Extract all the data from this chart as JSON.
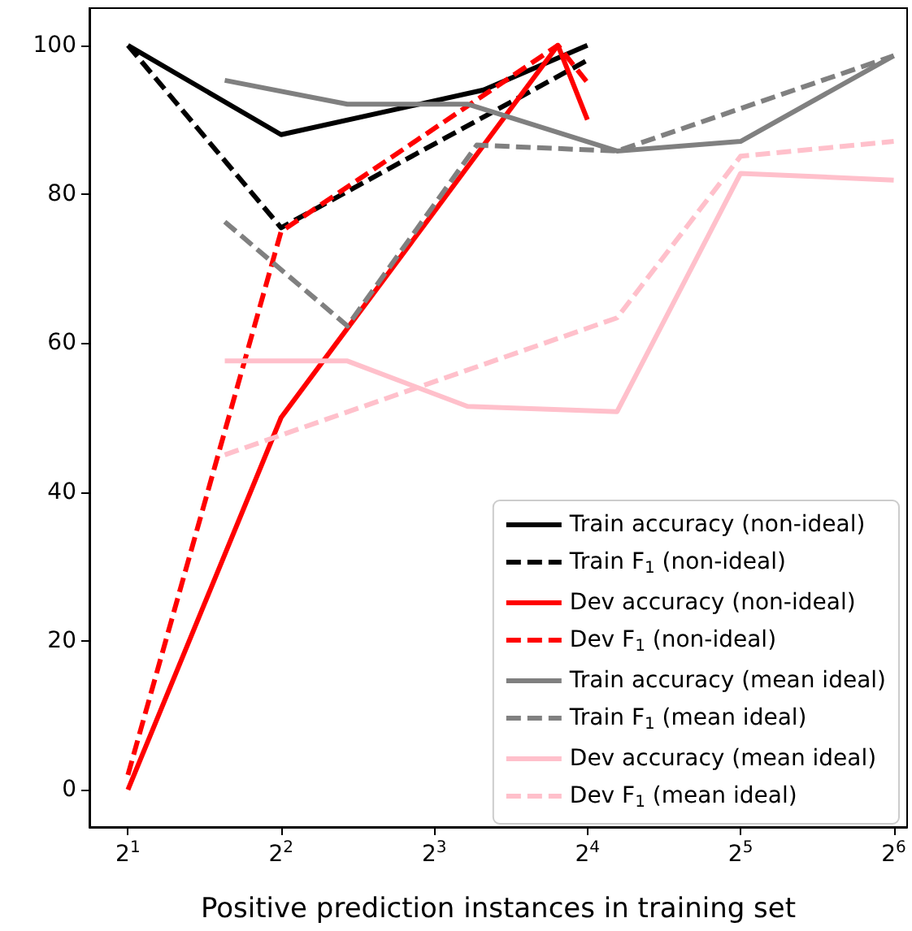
{
  "chart_data": {
    "type": "line",
    "xlabel": "Positive prediction instances in training set",
    "log": "x",
    "xlim": [
      1.68,
      68
    ],
    "xticks": [
      {
        "value": 2,
        "label": "2$^{1}$"
      },
      {
        "value": 4,
        "label": "2$^{2}$"
      },
      {
        "value": 8,
        "label": "2$^{3}$"
      },
      {
        "value": 16,
        "label": "2$^{4}$"
      },
      {
        "value": 32,
        "label": "2$^{5}$"
      },
      {
        "value": 64,
        "label": "2$^{6}$"
      }
    ],
    "ylim": [
      -5,
      105
    ],
    "yticks": [
      0,
      20,
      40,
      60,
      80,
      100
    ],
    "grid": false,
    "legend": "bottom right",
    "marker": "none",
    "series": [
      {
        "name": "Train accuracy (non-ideal)",
        "color": "#000000",
        "line_style": "solid",
        "x": [
          2,
          4,
          10,
          16
        ],
        "values": [
          100,
          88,
          94,
          100
        ]
      },
      {
        "name": "Train F$_{1}$ (non-ideal)",
        "color": "#000000",
        "line_style": "dashed",
        "x": [
          2,
          4,
          16
        ],
        "values": [
          100,
          75.5,
          98
        ]
      },
      {
        "name": "Dev accuracy (non-ideal)",
        "color": "#ff0000",
        "line_style": "solid",
        "x": [
          2,
          4,
          14,
          16
        ],
        "values": [
          0,
          50,
          100,
          90
        ]
      },
      {
        "name": "Dev F$_{1}$ (non-ideal)",
        "color": "#ff0000",
        "line_style": "dashed",
        "x": [
          2,
          4,
          14,
          16
        ],
        "values": [
          2,
          75,
          100,
          95
        ]
      },
      {
        "name": "Train accuracy (mean ideal)",
        "color": "#808080",
        "line_style": "solid",
        "x": [
          3.1,
          5.4,
          9.3,
          18.3,
          32,
          64
        ],
        "values": [
          95.3,
          92.1,
          92.1,
          85.8,
          87.1,
          98.6
        ]
      },
      {
        "name": "Train F$_{1}$ (mean ideal)",
        "color": "#808080",
        "line_style": "dashed",
        "x": [
          3.1,
          5.4,
          9.7,
          18.3,
          64
        ],
        "values": [
          76.3,
          62.3,
          86.6,
          85.8,
          98.6
        ]
      },
      {
        "name": "Dev accuracy (mean ideal)",
        "color": "#ffc0cb",
        "line_style": "solid",
        "x": [
          3.1,
          5.4,
          9.3,
          18.3,
          32,
          64
        ],
        "values": [
          57.6,
          57.6,
          51.5,
          50.8,
          82.8,
          81.9
        ]
      },
      {
        "name": "Dev F$_{1}$ (mean ideal)",
        "color": "#ffc0cb",
        "line_style": "dashed",
        "x": [
          3.1,
          18.3,
          32,
          64
        ],
        "values": [
          45,
          63.4,
          85.1,
          87.1
        ]
      }
    ]
  }
}
